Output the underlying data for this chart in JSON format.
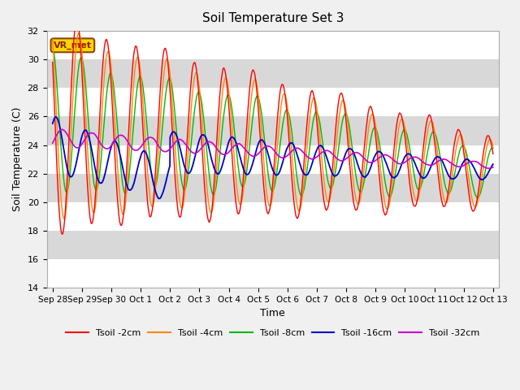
{
  "title": "Soil Temperature Set 3",
  "xlabel": "Time",
  "ylabel": "Soil Temperature (C)",
  "ylim": [
    14,
    32
  ],
  "annotation": "VR_met",
  "plot_bg_dark": "#d8d8d8",
  "plot_bg_light": "#ebebeb",
  "fig_bg": "#f0f0f0",
  "series_colors": {
    "Tsoil -2cm": "#ff0000",
    "Tsoil -4cm": "#ff8800",
    "Tsoil -8cm": "#00bb00",
    "Tsoil -16cm": "#0000cc",
    "Tsoil -32cm": "#cc00cc"
  },
  "xtick_labels": [
    "Sep 28",
    "Sep 29",
    "Sep 30",
    "Oct 1",
    "Oct 2",
    "Oct 3",
    "Oct 4",
    "Oct 5",
    "Oct 6",
    "Oct 7",
    "Oct 8",
    "Oct 9",
    "Oct 10",
    "Oct 11",
    "Oct 12",
    "Oct 13"
  ],
  "ytick_labels": [
    14,
    16,
    18,
    20,
    22,
    24,
    26,
    28,
    30,
    32
  ]
}
